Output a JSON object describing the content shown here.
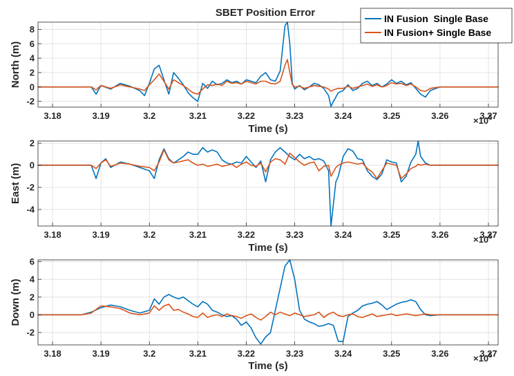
{
  "chart_data": [
    {
      "type": "line",
      "title": "SBET Position Error",
      "xlabel": "Time (s)",
      "ylabel": "North (m)",
      "x_multiplier": "×10^5",
      "xlim": [
        3.177,
        3.272
      ],
      "ylim": [
        -2.8,
        9
      ],
      "xticks": [
        3.18,
        3.19,
        3.2,
        3.21,
        3.22,
        3.23,
        3.24,
        3.25,
        3.26,
        3.27
      ],
      "xtick_labels": [
        "3.18",
        "3.19",
        "3.2",
        "3.21",
        "3.22",
        "3.23",
        "3.24",
        "3.25",
        "3.26",
        "3.27"
      ],
      "yticks": [
        -2,
        0,
        2,
        4,
        6,
        8
      ],
      "ytick_labels": [
        "-2",
        "0",
        "2",
        "4",
        "6",
        "8"
      ],
      "grid": true,
      "legend": "top-right",
      "series": [
        {
          "name": "IN Fusion  Single Base",
          "color": "#0072BD",
          "x": [
            3.177,
            3.188,
            3.189,
            3.19,
            3.192,
            3.194,
            3.196,
            3.198,
            3.199,
            3.2,
            3.201,
            3.202,
            3.203,
            3.204,
            3.205,
            3.206,
            3.207,
            3.208,
            3.209,
            3.21,
            3.211,
            3.212,
            3.213,
            3.214,
            3.215,
            3.216,
            3.217,
            3.218,
            3.219,
            3.22,
            3.221,
            3.222,
            3.223,
            3.224,
            3.225,
            3.226,
            3.227,
            3.228,
            3.2285,
            3.229,
            3.2295,
            3.23,
            3.231,
            3.232,
            3.233,
            3.234,
            3.235,
            3.236,
            3.237,
            3.2375,
            3.238,
            3.239,
            3.24,
            3.241,
            3.242,
            3.243,
            3.244,
            3.245,
            3.246,
            3.247,
            3.248,
            3.249,
            3.25,
            3.251,
            3.252,
            3.253,
            3.254,
            3.255,
            3.256,
            3.257,
            3.258,
            3.26,
            3.272
          ],
          "y": [
            0,
            0,
            -1.0,
            0.2,
            -0.3,
            0.5,
            0.1,
            -0.5,
            -1.2,
            0.5,
            2.5,
            3.0,
            1.0,
            -1.0,
            2.0,
            1.2,
            0.3,
            -0.8,
            -1.5,
            -2.0,
            0.5,
            -0.2,
            0.8,
            0.3,
            0.5,
            1.0,
            0.6,
            0.8,
            0.4,
            1.0,
            0.8,
            0.6,
            1.5,
            2.0,
            1.0,
            0.8,
            2.2,
            8.5,
            9.0,
            6.0,
            0.5,
            -0.3,
            0.2,
            -0.4,
            0.0,
            0.5,
            0.3,
            -0.2,
            -1.2,
            -2.7,
            -2.0,
            -0.8,
            -0.5,
            0.3,
            -0.5,
            -0.2,
            0.5,
            0.8,
            0.2,
            0.5,
            0.0,
            0.4,
            1.0,
            0.5,
            0.8,
            0.3,
            0.6,
            -0.2,
            -1.0,
            -1.4,
            -0.5,
            0,
            0
          ]
        },
        {
          "name": "IN Fusion+ Single Base",
          "color": "#D95319",
          "x": [
            3.177,
            3.188,
            3.189,
            3.19,
            3.192,
            3.194,
            3.196,
            3.198,
            3.199,
            3.2,
            3.201,
            3.202,
            3.203,
            3.204,
            3.205,
            3.206,
            3.207,
            3.208,
            3.209,
            3.21,
            3.211,
            3.212,
            3.213,
            3.214,
            3.215,
            3.216,
            3.217,
            3.218,
            3.219,
            3.22,
            3.221,
            3.222,
            3.223,
            3.224,
            3.225,
            3.226,
            3.227,
            3.228,
            3.2285,
            3.229,
            3.2295,
            3.23,
            3.231,
            3.232,
            3.233,
            3.234,
            3.235,
            3.236,
            3.237,
            3.2375,
            3.238,
            3.239,
            3.24,
            3.241,
            3.242,
            3.243,
            3.244,
            3.245,
            3.246,
            3.247,
            3.248,
            3.249,
            3.25,
            3.251,
            3.252,
            3.253,
            3.254,
            3.255,
            3.256,
            3.257,
            3.258,
            3.26,
            3.272
          ],
          "y": [
            0,
            0,
            -0.4,
            0.2,
            -0.2,
            0.3,
            0.0,
            -0.3,
            -0.5,
            0.3,
            1.0,
            1.8,
            0.8,
            -0.3,
            1.0,
            0.6,
            0.2,
            -0.3,
            -0.8,
            -1.0,
            -0.3,
            0.3,
            0.2,
            0.4,
            0.2,
            0.8,
            0.5,
            0.6,
            0.4,
            0.8,
            0.6,
            0.4,
            0.8,
            0.8,
            0.5,
            0.4,
            0.8,
            3.0,
            3.8,
            2.0,
            0.3,
            0.0,
            0.1,
            -0.2,
            0.0,
            0.2,
            0.1,
            0.0,
            -0.3,
            -0.6,
            -0.4,
            -0.2,
            -0.2,
            0.1,
            -0.2,
            0.0,
            0.2,
            0.4,
            0.1,
            0.3,
            0.0,
            0.2,
            0.6,
            0.4,
            0.5,
            0.2,
            0.4,
            0.0,
            -0.5,
            -0.6,
            -0.2,
            0,
            0
          ]
        }
      ]
    },
    {
      "type": "line",
      "title": "",
      "xlabel": "Time (s)",
      "ylabel": "East (m)",
      "x_multiplier": "×10^5",
      "xlim": [
        3.177,
        3.272
      ],
      "ylim": [
        -5.5,
        2.2
      ],
      "xticks": [
        3.18,
        3.19,
        3.2,
        3.21,
        3.22,
        3.23,
        3.24,
        3.25,
        3.26,
        3.27
      ],
      "xtick_labels": [
        "3.18",
        "3.19",
        "3.2",
        "3.21",
        "3.22",
        "3.23",
        "3.24",
        "3.25",
        "3.26",
        "3.27"
      ],
      "yticks": [
        -4,
        -2,
        0,
        2
      ],
      "ytick_labels": [
        "-4",
        "-2",
        "0",
        "2"
      ],
      "grid": true,
      "series": [
        {
          "name": "IN Fusion  Single Base",
          "color": "#0072BD",
          "x": [
            3.177,
            3.188,
            3.189,
            3.19,
            3.191,
            3.192,
            3.194,
            3.196,
            3.198,
            3.2,
            3.201,
            3.202,
            3.203,
            3.204,
            3.205,
            3.206,
            3.207,
            3.208,
            3.209,
            3.21,
            3.211,
            3.212,
            3.213,
            3.214,
            3.215,
            3.216,
            3.217,
            3.218,
            3.219,
            3.22,
            3.221,
            3.222,
            3.223,
            3.224,
            3.225,
            3.226,
            3.227,
            3.228,
            3.229,
            3.23,
            3.231,
            3.232,
            3.233,
            3.234,
            3.235,
            3.236,
            3.237,
            3.2375,
            3.238,
            3.2385,
            3.239,
            3.24,
            3.241,
            3.242,
            3.243,
            3.244,
            3.245,
            3.246,
            3.247,
            3.248,
            3.249,
            3.25,
            3.251,
            3.252,
            3.253,
            3.254,
            3.255,
            3.2555,
            3.256,
            3.257,
            3.258,
            3.26,
            3.272
          ],
          "y": [
            0,
            0,
            -1.2,
            0.2,
            0.6,
            -0.2,
            0.3,
            0.1,
            -0.2,
            -0.5,
            -1.2,
            0.5,
            1.5,
            0.6,
            0.2,
            0.5,
            0.8,
            1.2,
            1.0,
            1.0,
            1.6,
            1.2,
            1.4,
            1.2,
            0.5,
            0.2,
            0.1,
            0.3,
            0.2,
            0.8,
            0.3,
            -0.2,
            0.4,
            -1.5,
            0.5,
            1.2,
            1.6,
            1.2,
            0.8,
            0.5,
            1.0,
            0.6,
            0.8,
            0.5,
            0.6,
            0.4,
            -0.5,
            -5.5,
            -3.5,
            -1.5,
            -1.0,
            0.8,
            1.5,
            1.3,
            0.6,
            0.5,
            -0.5,
            -1.0,
            -1.3,
            -0.8,
            0.5,
            0.3,
            0.2,
            -1.5,
            -1.0,
            0.3,
            1.0,
            2.2,
            0.8,
            0.2,
            0.0,
            0,
            0
          ]
        },
        {
          "name": "IN Fusion+ Single Base",
          "color": "#D95319",
          "x": [
            3.177,
            3.188,
            3.189,
            3.19,
            3.191,
            3.192,
            3.194,
            3.196,
            3.198,
            3.2,
            3.201,
            3.202,
            3.203,
            3.204,
            3.205,
            3.206,
            3.207,
            3.208,
            3.209,
            3.21,
            3.211,
            3.212,
            3.213,
            3.214,
            3.215,
            3.216,
            3.217,
            3.218,
            3.219,
            3.22,
            3.221,
            3.222,
            3.223,
            3.224,
            3.225,
            3.226,
            3.227,
            3.228,
            3.229,
            3.23,
            3.231,
            3.232,
            3.233,
            3.234,
            3.235,
            3.236,
            3.237,
            3.2375,
            3.238,
            3.2385,
            3.239,
            3.24,
            3.241,
            3.242,
            3.243,
            3.244,
            3.245,
            3.246,
            3.247,
            3.248,
            3.249,
            3.25,
            3.251,
            3.252,
            3.253,
            3.254,
            3.255,
            3.2555,
            3.256,
            3.257,
            3.258,
            3.26,
            3.272
          ],
          "y": [
            0,
            0,
            -0.3,
            0.2,
            0.5,
            -0.1,
            0.2,
            0.1,
            -0.1,
            -0.2,
            -0.5,
            0.3,
            1.4,
            0.5,
            0.2,
            0.3,
            0.4,
            0.5,
            0.2,
            0.0,
            0.1,
            -0.1,
            0.0,
            0.1,
            -0.1,
            0.0,
            0.1,
            -0.2,
            0.1,
            0.3,
            0.0,
            -0.1,
            0.2,
            -0.6,
            0.3,
            0.6,
            0.5,
            0.1,
            1.1,
            0.7,
            0.3,
            0.0,
            0.2,
            0.3,
            -0.5,
            -0.1,
            0.0,
            -1.0,
            -0.6,
            -0.2,
            0.0,
            0.2,
            0.3,
            0.2,
            0.1,
            0.2,
            -0.3,
            -0.6,
            -1.2,
            -0.5,
            0.2,
            0.1,
            0.0,
            -1.2,
            -0.8,
            -0.3,
            -0.1,
            0.1,
            0.0,
            0.1,
            0.0,
            0,
            0
          ]
        }
      ]
    },
    {
      "type": "line",
      "title": "",
      "xlabel": "Time (s)",
      "ylabel": "Down (m)",
      "x_multiplier": "×10^5",
      "xlim": [
        3.177,
        3.272
      ],
      "ylim": [
        -3.4,
        6.2
      ],
      "xticks": [
        3.18,
        3.19,
        3.2,
        3.21,
        3.22,
        3.23,
        3.24,
        3.25,
        3.26,
        3.27
      ],
      "xtick_labels": [
        "3.18",
        "3.19",
        "3.2",
        "3.21",
        "3.22",
        "3.23",
        "3.24",
        "3.25",
        "3.26",
        "3.27"
      ],
      "yticks": [
        -2,
        0,
        2,
        4,
        6
      ],
      "ytick_labels": [
        "-2",
        "0",
        "2",
        "4",
        "6"
      ],
      "grid": true,
      "series": [
        {
          "name": "IN Fusion  Single Base",
          "color": "#0072BD",
          "x": [
            3.177,
            3.186,
            3.188,
            3.19,
            3.192,
            3.194,
            3.196,
            3.198,
            3.2,
            3.201,
            3.202,
            3.203,
            3.204,
            3.205,
            3.206,
            3.207,
            3.208,
            3.209,
            3.21,
            3.211,
            3.212,
            3.213,
            3.214,
            3.215,
            3.216,
            3.217,
            3.218,
            3.219,
            3.22,
            3.221,
            3.222,
            3.223,
            3.224,
            3.225,
            3.226,
            3.227,
            3.228,
            3.229,
            3.23,
            3.231,
            3.232,
            3.233,
            3.234,
            3.235,
            3.236,
            3.237,
            3.238,
            3.239,
            3.24,
            3.241,
            3.242,
            3.243,
            3.244,
            3.245,
            3.246,
            3.247,
            3.248,
            3.249,
            3.25,
            3.251,
            3.252,
            3.253,
            3.254,
            3.255,
            3.256,
            3.257,
            3.258,
            3.26,
            3.272
          ],
          "y": [
            0,
            0,
            0.3,
            0.8,
            1.1,
            0.9,
            0.5,
            0.2,
            0.5,
            1.8,
            1.2,
            2.0,
            2.3,
            2.0,
            1.8,
            2.0,
            1.6,
            1.2,
            0.9,
            1.5,
            1.2,
            0.5,
            0.3,
            0.0,
            -0.2,
            -0.1,
            -0.5,
            -1.2,
            -0.8,
            -1.5,
            -2.6,
            -3.3,
            -2.5,
            -2.0,
            0.5,
            3.0,
            5.5,
            6.2,
            4.0,
            0.5,
            -0.5,
            -0.8,
            -1.0,
            -1.3,
            -1.2,
            -1.0,
            -1.2,
            -3.0,
            -3.0,
            -0.2,
            0.2,
            0.5,
            1.0,
            1.2,
            1.3,
            1.5,
            1.1,
            0.6,
            0.9,
            1.2,
            1.4,
            1.5,
            1.7,
            1.5,
            0.6,
            0.0,
            -0.1,
            0,
            0
          ]
        },
        {
          "name": "IN Fusion+ Single Base",
          "color": "#D95319",
          "x": [
            3.177,
            3.186,
            3.188,
            3.19,
            3.192,
            3.194,
            3.196,
            3.198,
            3.2,
            3.201,
            3.202,
            3.203,
            3.204,
            3.205,
            3.206,
            3.207,
            3.208,
            3.209,
            3.21,
            3.211,
            3.212,
            3.213,
            3.214,
            3.215,
            3.216,
            3.217,
            3.218,
            3.219,
            3.22,
            3.221,
            3.222,
            3.223,
            3.224,
            3.225,
            3.226,
            3.227,
            3.228,
            3.229,
            3.23,
            3.231,
            3.232,
            3.233,
            3.234,
            3.235,
            3.236,
            3.237,
            3.238,
            3.239,
            3.24,
            3.241,
            3.242,
            3.243,
            3.244,
            3.245,
            3.246,
            3.247,
            3.248,
            3.249,
            3.25,
            3.251,
            3.252,
            3.253,
            3.254,
            3.255,
            3.256,
            3.257,
            3.258,
            3.26,
            3.272
          ],
          "y": [
            0,
            0,
            0.2,
            1.0,
            0.9,
            0.7,
            0.2,
            0.0,
            0.2,
            1.0,
            0.5,
            1.0,
            1.2,
            0.5,
            0.6,
            0.3,
            0.1,
            -0.2,
            -0.3,
            0.2,
            -0.3,
            -0.1,
            0.0,
            -0.2,
            0.1,
            -0.1,
            -0.2,
            -0.4,
            -0.1,
            0.1,
            -0.3,
            -0.6,
            -0.2,
            0.3,
            0.0,
            0.3,
            0.1,
            -0.1,
            0.2,
            0.0,
            -0.2,
            -0.1,
            0.0,
            0.3,
            -0.3,
            0.1,
            0.3,
            -0.1,
            -0.2,
            0.0,
            0.1,
            -0.2,
            -0.3,
            -0.1,
            0.1,
            -0.2,
            -0.1,
            0.0,
            0.1,
            -0.1,
            0.0,
            0.1,
            0.0,
            -0.1,
            0.0,
            0.1,
            0.0,
            0,
            0
          ]
        }
      ]
    }
  ]
}
